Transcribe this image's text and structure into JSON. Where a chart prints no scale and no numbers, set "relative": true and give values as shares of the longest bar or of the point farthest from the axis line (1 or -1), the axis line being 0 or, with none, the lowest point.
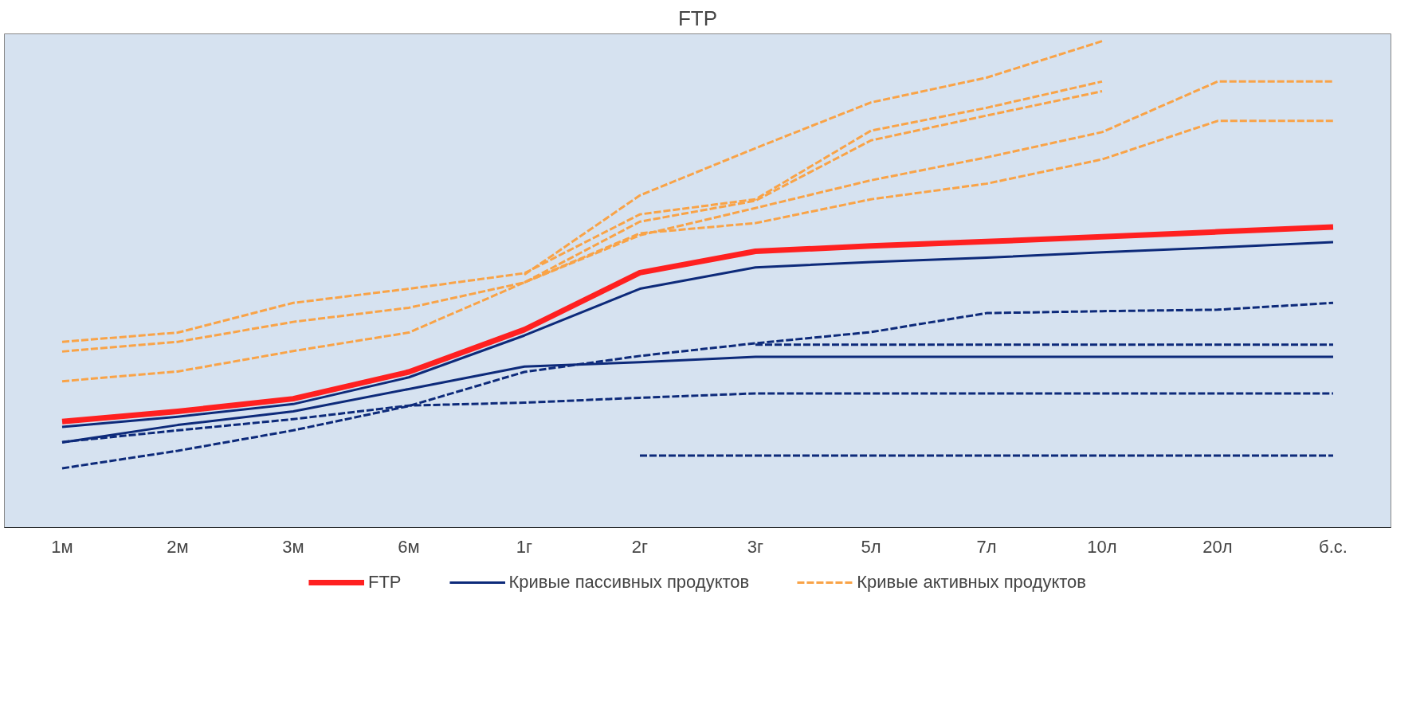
{
  "chart_data": {
    "type": "line",
    "title": "FTP",
    "relative": true,
    "legend": "bottom",
    "grid": false,
    "categories": [
      "1м",
      "2м",
      "3м",
      "6м",
      "1г",
      "2г",
      "3г",
      "5л",
      "7л",
      "10л",
      "20л",
      "б.с."
    ],
    "series": [
      {
        "name": "FTP",
        "color": "#ff2020",
        "line_style": "solid",
        "values": [
          0.218,
          0.239,
          0.265,
          0.32,
          0.407,
          0.524,
          0.568,
          0.579,
          0.588,
          0.598,
          0.608,
          0.618
        ]
      },
      {
        "name": "Кривые пассивных продуктов",
        "color": "#0d2a7a",
        "line_style": "solid",
        "values": [
          0.207,
          0.228,
          0.254,
          0.309,
          0.395,
          0.491,
          0.535,
          0.546,
          0.555,
          0.566,
          0.576,
          0.587
        ]
      },
      {
        "color": "#0d2a7a",
        "line_style": "solid",
        "values": [
          0.175,
          0.211,
          0.239,
          0.285,
          0.331,
          0.34,
          0.351,
          0.351,
          0.351,
          0.351,
          0.351,
          0.351
        ]
      },
      {
        "color": "#0d2a7a",
        "line_style": "dashed",
        "values": [
          0.122,
          0.158,
          0.2,
          0.25,
          0.32,
          0.353,
          0.379,
          0.402,
          0.441,
          0.445,
          0.448,
          0.462
        ]
      },
      {
        "color": "#0d2a7a",
        "line_style": "dashed",
        "values": [
          0.176,
          0.2,
          0.223,
          0.251,
          0.257,
          0.267,
          0.276,
          0.276,
          0.276,
          0.276,
          0.276,
          0.276
        ]
      },
      {
        "color": "#0d2a7a",
        "line_style": "dashed",
        "values": [
          null,
          null,
          null,
          null,
          null,
          null,
          0.376,
          0.376,
          0.376,
          0.376,
          0.376,
          0.376
        ]
      },
      {
        "color": "#0d2a7a",
        "line_style": "dashed",
        "values": [
          null,
          null,
          null,
          null,
          null,
          0.148,
          0.148,
          0.148,
          0.148,
          0.148,
          0.148,
          0.148
        ]
      },
      {
        "name": "Кривые активных продуктов",
        "color": "#f9a347",
        "line_style": "dashed",
        "values": [
          0.382,
          0.401,
          0.462,
          0.491,
          0.523,
          0.644,
          0.675,
          0.816,
          0.863,
          0.917,
          null,
          null
        ]
      },
      {
        "color": "#f9a347",
        "line_style": "dashed",
        "values": [
          0.362,
          0.382,
          0.423,
          0.452,
          0.504,
          0.629,
          0.672,
          0.796,
          0.847,
          0.897,
          null,
          null
        ]
      },
      {
        "color": "#f9a347",
        "line_style": "dashed",
        "values": [
          0.301,
          0.321,
          0.363,
          0.401,
          0.504,
          0.605,
          0.626,
          0.675,
          0.707,
          0.757,
          0.836,
          0.836
        ]
      },
      {
        "color": "#f9a347",
        "line_style": "dashed",
        "values": [
          null,
          null,
          null,
          null,
          0.52,
          0.683,
          0.78,
          0.874,
          0.925,
          1,
          null,
          null
        ]
      },
      {
        "color": "#f9a347",
        "line_style": "dashed",
        "values": [
          null,
          null,
          null,
          null,
          0.504,
          0.601,
          0.657,
          0.714,
          0.761,
          0.813,
          0.917,
          0.917
        ]
      }
    ]
  }
}
